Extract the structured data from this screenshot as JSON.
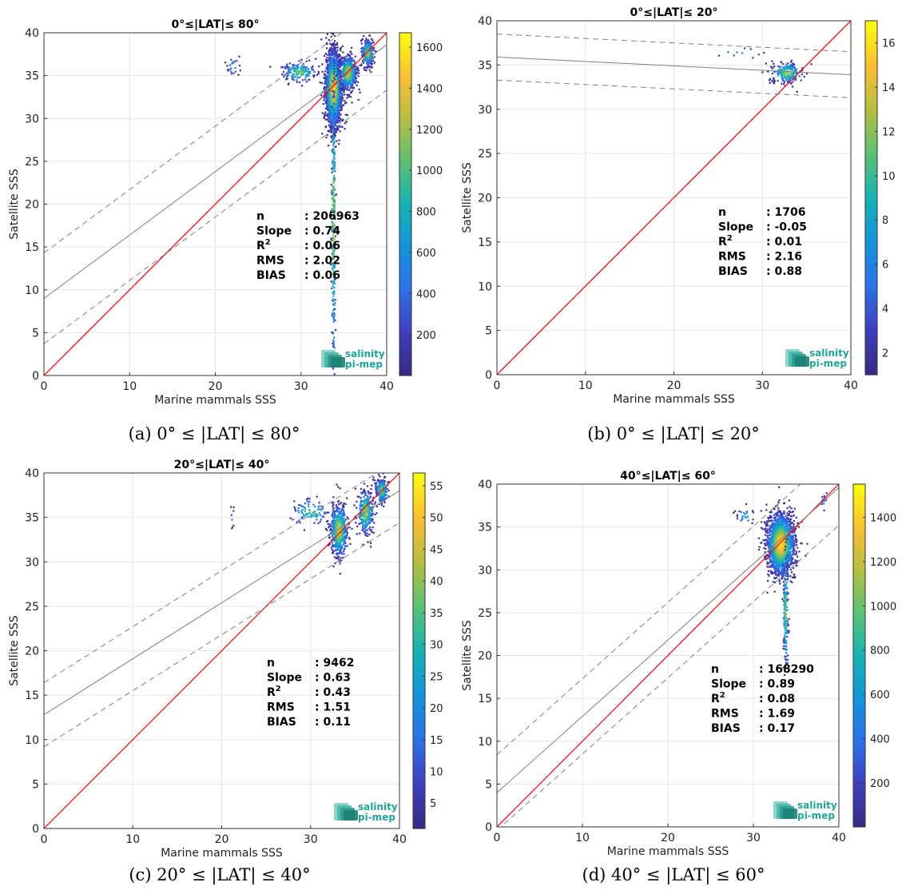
{
  "chart_data": [
    {
      "type": "heatmap",
      "title": "0°≤|LAT|≤ 80°",
      "caption": "(a) 0° ≤ |LAT| ≤ 80°",
      "xlabel": "Marine mammals SSS",
      "ylabel": "Satellite SSS",
      "xlim": [
        0,
        40
      ],
      "ylim": [
        0,
        40
      ],
      "xticks": [
        0,
        10,
        20,
        30,
        40
      ],
      "yticks": [
        0,
        5,
        10,
        15,
        20,
        25,
        30,
        35,
        40
      ],
      "grid": true,
      "colorbar": {
        "min": 1,
        "max": 1670,
        "ticks": [
          200,
          400,
          600,
          800,
          1000,
          1200,
          1400,
          1600
        ]
      },
      "identity_line": true,
      "regression": {
        "intercept": 9.0,
        "slope": 0.74,
        "band": 5.3
      },
      "clusters": [
        {
          "x": 33.8,
          "y": 33.4,
          "sx": 0.45,
          "sy": 2.2,
          "n": 2200
        },
        {
          "x": 33.8,
          "y": 18.0,
          "sx": 0.12,
          "sy": 9.5,
          "n": 340
        },
        {
          "x": 35.5,
          "y": 35.3,
          "sx": 0.5,
          "sy": 1.0,
          "n": 500
        },
        {
          "x": 37.8,
          "y": 37.6,
          "sx": 0.35,
          "sy": 0.8,
          "n": 300
        },
        {
          "x": 29.8,
          "y": 35.4,
          "sx": 1.0,
          "sy": 0.6,
          "n": 160
        },
        {
          "x": 22.2,
          "y": 36.0,
          "sx": 0.4,
          "sy": 0.6,
          "n": 22
        }
      ],
      "stats": [
        {
          "label": "n",
          "sup": "",
          "value": ": 206963"
        },
        {
          "label": "Slope",
          "sup": "",
          "value": ": 0.74"
        },
        {
          "label": "R",
          "sup": "2",
          "value": ": 0.06"
        },
        {
          "label": "RMS",
          "sup": "",
          "value": ": 2.02"
        },
        {
          "label": "BIAS",
          "sup": "",
          "value": ": 0.06"
        }
      ]
    },
    {
      "type": "heatmap",
      "title": "0°≤|LAT|≤ 20°",
      "caption": "(b) 0° ≤ |LAT| ≤ 20°",
      "xlabel": "Marine mammals SSS",
      "ylabel": "Satellite SSS",
      "xlim": [
        0,
        40
      ],
      "ylim": [
        0,
        40
      ],
      "xticks": [
        0,
        10,
        20,
        30,
        40
      ],
      "yticks": [
        0,
        5,
        10,
        15,
        20,
        25,
        30,
        35,
        40
      ],
      "grid": true,
      "colorbar": {
        "min": 1,
        "max": 17,
        "ticks": [
          2,
          4,
          6,
          8,
          10,
          12,
          14,
          16
        ]
      },
      "identity_line": true,
      "regression": {
        "intercept": 35.9,
        "slope": -0.05,
        "band": 2.6
      },
      "clusters": [
        {
          "x": 32.8,
          "y": 34.1,
          "sx": 0.9,
          "sy": 0.6,
          "n": 220
        },
        {
          "x": 27.5,
          "y": 36.4,
          "sx": 1.8,
          "sy": 0.4,
          "n": 10
        }
      ],
      "stats": [
        {
          "label": "n",
          "sup": "",
          "value": ": 1706"
        },
        {
          "label": "Slope",
          "sup": "",
          "value": ": -0.05"
        },
        {
          "label": "R",
          "sup": "2",
          "value": ": 0.01"
        },
        {
          "label": "RMS",
          "sup": "",
          "value": ": 2.16"
        },
        {
          "label": "BIAS",
          "sup": "",
          "value": ": 0.88"
        }
      ]
    },
    {
      "type": "heatmap",
      "title": "20°≤|LAT|≤ 40°",
      "caption": "(c) 20° ≤ |LAT| ≤ 40°",
      "xlabel": "Marine mammals SSS",
      "ylabel": "Satellite SSS",
      "xlim": [
        0,
        40
      ],
      "ylim": [
        0,
        40
      ],
      "xticks": [
        0,
        10,
        20,
        30,
        40
      ],
      "yticks": [
        0,
        5,
        10,
        15,
        20,
        25,
        30,
        35,
        40
      ],
      "grid": true,
      "colorbar": {
        "min": 1,
        "max": 57,
        "ticks": [
          5,
          10,
          15,
          20,
          25,
          30,
          35,
          40,
          45,
          50,
          55
        ]
      },
      "identity_line": true,
      "regression": {
        "intercept": 12.8,
        "slope": 0.63,
        "band": 3.6
      },
      "clusters": [
        {
          "x": 33.2,
          "y": 33.5,
          "sx": 0.5,
          "sy": 1.5,
          "n": 500
        },
        {
          "x": 36.2,
          "y": 35.6,
          "sx": 0.45,
          "sy": 1.3,
          "n": 300
        },
        {
          "x": 38.0,
          "y": 38.0,
          "sx": 0.35,
          "sy": 0.7,
          "n": 220
        },
        {
          "x": 30.0,
          "y": 35.6,
          "sx": 1.1,
          "sy": 0.7,
          "n": 90
        },
        {
          "x": 21.2,
          "y": 34.8,
          "sx": 0.1,
          "sy": 0.7,
          "n": 8
        }
      ],
      "stats": [
        {
          "label": "n",
          "sup": "",
          "value": ": 9462"
        },
        {
          "label": "Slope",
          "sup": "",
          "value": ": 0.63"
        },
        {
          "label": "R",
          "sup": "2",
          "value": ": 0.43"
        },
        {
          "label": "RMS",
          "sup": "",
          "value": ": 1.51"
        },
        {
          "label": "BIAS",
          "sup": "",
          "value": ": 0.11"
        }
      ]
    },
    {
      "type": "heatmap",
      "title": "40°≤|LAT|≤ 60°",
      "caption": "(d) 40° ≤ |LAT| ≤ 60°",
      "xlabel": "Marine mammals SSS",
      "ylabel": "Satellite SSS",
      "xlim": [
        0,
        40
      ],
      "ylim": [
        0,
        40
      ],
      "xticks": [
        0,
        10,
        20,
        30,
        40
      ],
      "yticks": [
        0,
        5,
        10,
        15,
        20,
        25,
        30,
        35,
        40
      ],
      "grid": true,
      "colorbar": {
        "min": 1,
        "max": 1550,
        "ticks": [
          200,
          400,
          600,
          800,
          1000,
          1200,
          1400
        ]
      },
      "identity_line": true,
      "regression": {
        "intercept": 4.0,
        "slope": 0.89,
        "band": 4.4
      },
      "clusters": [
        {
          "x": 33.2,
          "y": 33.0,
          "sx": 0.8,
          "sy": 1.8,
          "n": 2000
        },
        {
          "x": 33.8,
          "y": 25.0,
          "sx": 0.15,
          "sy": 3.5,
          "n": 200
        },
        {
          "x": 29.0,
          "y": 36.3,
          "sx": 0.6,
          "sy": 0.5,
          "n": 25
        },
        {
          "x": 38.2,
          "y": 38.0,
          "sx": 0.2,
          "sy": 0.4,
          "n": 15
        }
      ],
      "stats": [
        {
          "label": "n",
          "sup": "",
          "value": ": 168290"
        },
        {
          "label": "Slope",
          "sup": "",
          "value": ": 0.89"
        },
        {
          "label": "R",
          "sup": "2",
          "value": ": 0.08"
        },
        {
          "label": "RMS",
          "sup": "",
          "value": ": 1.69"
        },
        {
          "label": "BIAS",
          "sup": "",
          "value": ": 0.17"
        }
      ]
    }
  ],
  "logo": {
    "line1": "salinity",
    "line2": "pi-mep"
  },
  "colors": {
    "identity_line": "#ff0000",
    "regression_line": "#808080",
    "grid": "#e6e6e6",
    "logo_text": "#1fa59a"
  }
}
